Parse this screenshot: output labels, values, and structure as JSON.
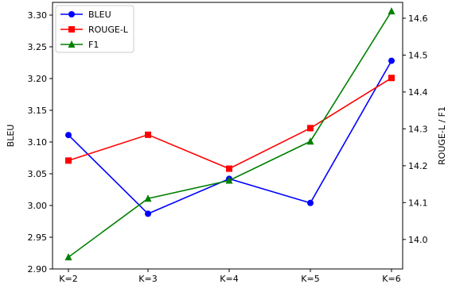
{
  "chart_data": {
    "type": "line",
    "categories": [
      "K=2",
      "K=3",
      "K=4",
      "K=5",
      "K=6"
    ],
    "y_left": {
      "label": "BLEU",
      "ylim": [
        2.9,
        3.32
      ],
      "ticks": [
        "2.90",
        "2.95",
        "3.00",
        "3.05",
        "3.10",
        "3.15",
        "3.20",
        "3.25",
        "3.30"
      ]
    },
    "y_right": {
      "label": "ROUGE-L / F1",
      "ylim": [
        13.92,
        14.643
      ],
      "ticks": [
        "14.0",
        "14.1",
        "14.2",
        "14.3",
        "14.4",
        "14.5",
        "14.6"
      ]
    },
    "series": [
      {
        "name": "BLEU",
        "axis": "left",
        "color": "#0000ff",
        "marker": "circle",
        "values": [
          3.111,
          2.987,
          3.042,
          3.004,
          3.228
        ]
      },
      {
        "name": "ROUGE-L",
        "axis": "right",
        "color": "#ff0000",
        "marker": "square",
        "values": [
          14.214,
          14.284,
          14.192,
          14.302,
          14.438
        ]
      },
      {
        "name": "F1",
        "axis": "right",
        "color": "#008000",
        "marker": "triangle",
        "values": [
          13.952,
          14.111,
          14.16,
          14.266,
          14.619
        ]
      }
    ],
    "legend_position": "top-left",
    "grid": false
  }
}
